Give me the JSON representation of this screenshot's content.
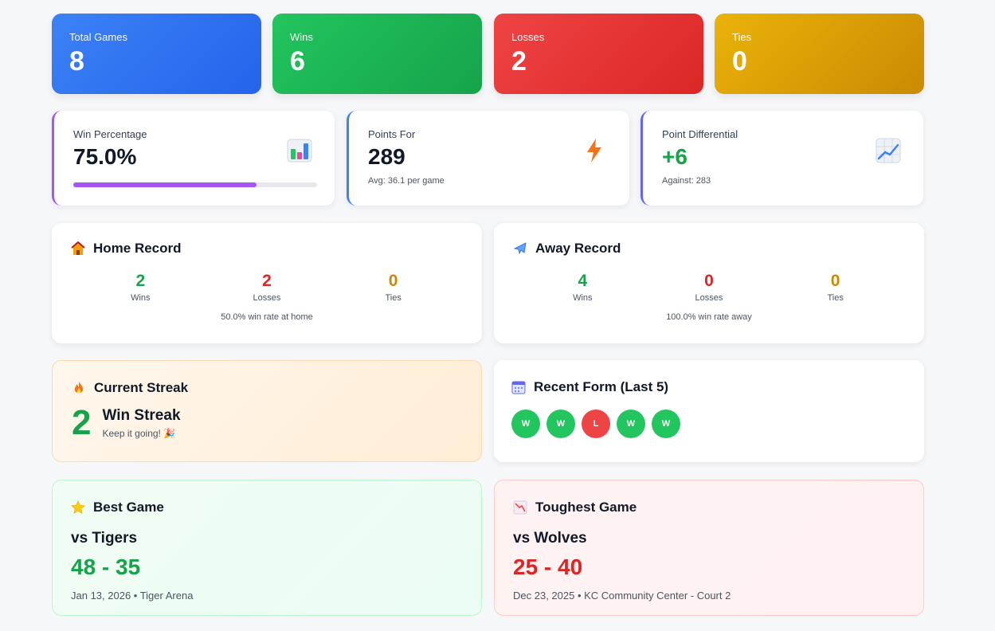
{
  "stats": [
    {
      "label": "Total Games",
      "value": "8",
      "color": "#2563eb"
    },
    {
      "label": "Wins",
      "value": "6",
      "color": "#16a34a"
    },
    {
      "label": "Losses",
      "value": "2",
      "color": "#dc2626"
    },
    {
      "label": "Ties",
      "value": "0",
      "color": "#ca8a04"
    }
  ],
  "win_percentage": {
    "label": "Win Percentage",
    "value": "75.0%",
    "progress": 0.75,
    "icon": "bar-chart-icon",
    "accent": "#a855f7"
  },
  "points_for": {
    "label": "Points For",
    "value": "289",
    "sub": "Avg: 36.1 per game",
    "icon": "lightning-icon",
    "accent": "#3b82f6"
  },
  "point_diff": {
    "label": "Point Differential",
    "value": "+6",
    "sub": "Against: 283",
    "icon": "trend-up-icon",
    "accent": "#6366f1"
  },
  "home": {
    "title": "Home Record",
    "icon": "house-icon",
    "wins": "2",
    "wins_label": "Wins",
    "losses": "2",
    "losses_label": "Losses",
    "ties": "0",
    "ties_label": "Ties",
    "note": "50.0% win rate at home"
  },
  "away": {
    "title": "Away Record",
    "icon": "airplane-icon",
    "wins": "4",
    "wins_label": "Wins",
    "losses": "0",
    "losses_label": "Losses",
    "ties": "0",
    "ties_label": "Ties",
    "note": "100.0% win rate away"
  },
  "streak": {
    "title": "Current Streak",
    "icon": "fire-icon",
    "count": "2",
    "type": "Win Streak",
    "sub": "Keep it going! 🎉"
  },
  "recent_form": {
    "title": "Recent Form (Last 5)",
    "icon": "calendar-icon",
    "results": [
      "W",
      "W",
      "L",
      "W",
      "W"
    ]
  },
  "best_game": {
    "title": "Best Game",
    "icon": "star-icon",
    "opponent": "vs Tigers",
    "score": "48 - 35",
    "meta": "Jan 13, 2026 • Tiger Arena"
  },
  "toughest_game": {
    "title": "Toughest Game",
    "icon": "chart-down-icon",
    "opponent": "vs Wolves",
    "score": "25 - 40",
    "meta": "Dec 23, 2025 • KC Community Center - Court 2"
  }
}
